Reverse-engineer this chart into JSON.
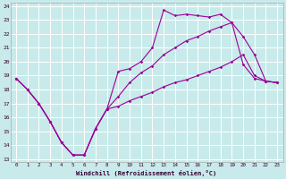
{
  "background_color": "#c8eaea",
  "grid_color": "#ffffff",
  "line_color": "#990099",
  "xlabel": "Windchill (Refroidissement éolien,°C)",
  "xlim": [
    -0.5,
    23.5
  ],
  "ylim": [
    12.8,
    24.2
  ],
  "yticks": [
    13,
    14,
    15,
    16,
    17,
    18,
    19,
    20,
    21,
    22,
    23,
    24
  ],
  "xticks": [
    0,
    1,
    2,
    3,
    4,
    5,
    6,
    7,
    8,
    9,
    10,
    11,
    12,
    13,
    14,
    15,
    16,
    17,
    18,
    19,
    20,
    21,
    22,
    23
  ],
  "line1_x": [
    0,
    1,
    2,
    3,
    4,
    5,
    6,
    7,
    8,
    9,
    10,
    11,
    12,
    13,
    14,
    15,
    16,
    17,
    18,
    19,
    20,
    21,
    22,
    23
  ],
  "line1_y": [
    18.8,
    18.0,
    17.0,
    15.7,
    14.2,
    13.3,
    13.3,
    15.2,
    16.6,
    16.8,
    17.2,
    17.5,
    17.8,
    18.2,
    18.5,
    18.7,
    19.0,
    19.3,
    19.6,
    20.0,
    20.5,
    19.0,
    18.6,
    18.5
  ],
  "line2_x": [
    0,
    1,
    2,
    3,
    4,
    5,
    6,
    7,
    8,
    9,
    10,
    11,
    12,
    13,
    14,
    15,
    16,
    17,
    18,
    19,
    20,
    21,
    22,
    23
  ],
  "line2_y": [
    18.8,
    18.0,
    17.0,
    15.7,
    14.2,
    13.3,
    13.3,
    15.2,
    16.6,
    19.3,
    19.5,
    20.0,
    21.0,
    23.7,
    23.3,
    23.4,
    23.3,
    23.2,
    23.4,
    22.8,
    19.8,
    18.8,
    18.6,
    18.5
  ],
  "line3_x": [
    0,
    1,
    2,
    3,
    4,
    5,
    6,
    7,
    8,
    9,
    10,
    11,
    12,
    13,
    14,
    15,
    16,
    17,
    18,
    19,
    20,
    21,
    22,
    23
  ],
  "line3_y": [
    18.8,
    18.0,
    17.0,
    15.7,
    14.2,
    13.3,
    13.3,
    15.2,
    16.6,
    17.5,
    18.5,
    19.2,
    19.7,
    20.5,
    21.0,
    21.5,
    21.8,
    22.2,
    22.5,
    22.8,
    21.8,
    20.5,
    18.6,
    18.5
  ]
}
